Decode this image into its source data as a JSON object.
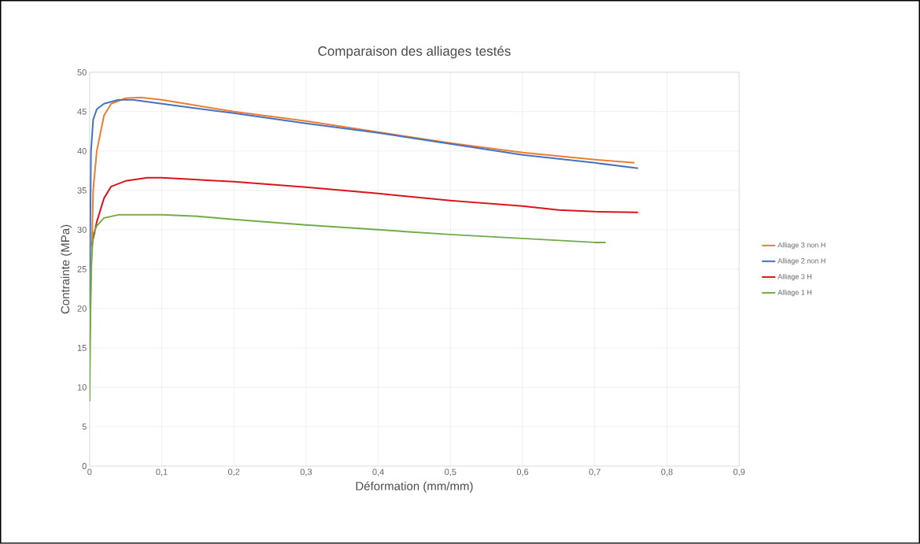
{
  "chart_data": {
    "type": "line",
    "title": "Comparaison des alliages testés",
    "xlabel": "Déformation (mm/mm)",
    "ylabel": "Contrainte (MPa)",
    "xlim": [
      0,
      0.9
    ],
    "ylim": [
      0,
      50
    ],
    "xticks": [
      {
        "value": 0,
        "label": "0"
      },
      {
        "value": 0.1,
        "label": "0,1"
      },
      {
        "value": 0.2,
        "label": "0,2"
      },
      {
        "value": 0.3,
        "label": "0,3"
      },
      {
        "value": 0.4,
        "label": "0,4"
      },
      {
        "value": 0.5,
        "label": "0,5"
      },
      {
        "value": 0.6,
        "label": "0,6"
      },
      {
        "value": 0.7,
        "label": "0,7"
      },
      {
        "value": 0.8,
        "label": "0,8"
      },
      {
        "value": 0.9,
        "label": "0,9"
      }
    ],
    "yticks": [
      0,
      5,
      10,
      15,
      20,
      25,
      30,
      35,
      40,
      45,
      50
    ],
    "grid": true,
    "legend": "right",
    "marker": "none",
    "line_style": "solid",
    "series": [
      {
        "name": "Alliage 3 non H",
        "color": "#ed7d31",
        "x": [
          0,
          0.005,
          0.01,
          0.02,
          0.03,
          0.05,
          0.07,
          0.1,
          0.2,
          0.3,
          0.4,
          0.5,
          0.6,
          0.7,
          0.755
        ],
        "values": [
          15,
          35,
          40,
          44.5,
          46,
          46.7,
          46.8,
          46.5,
          45,
          43.8,
          42.4,
          41,
          39.8,
          38.9,
          38.5
        ]
      },
      {
        "name": "Alliage 2 non H",
        "color": "#4472c4",
        "x": [
          0,
          0.002,
          0.005,
          0.01,
          0.02,
          0.04,
          0.06,
          0.1,
          0.2,
          0.3,
          0.4,
          0.5,
          0.6,
          0.7,
          0.76
        ],
        "values": [
          20,
          40,
          44,
          45.3,
          46,
          46.5,
          46.5,
          46,
          44.8,
          43.5,
          42.3,
          40.9,
          39.5,
          38.5,
          37.8
        ]
      },
      {
        "name": "Alliage 3 H",
        "color": "#d9151b",
        "x": [
          0.003,
          0.01,
          0.02,
          0.03,
          0.05,
          0.08,
          0.1,
          0.2,
          0.3,
          0.4,
          0.5,
          0.6,
          0.65,
          0.7,
          0.76
        ],
        "values": [
          28,
          31,
          34,
          35.5,
          36.2,
          36.6,
          36.6,
          36.1,
          35.4,
          34.6,
          33.7,
          33,
          32.5,
          32.3,
          32.2
        ]
      },
      {
        "name": "Alliage 1 H",
        "color": "#70ad47",
        "x": [
          0,
          0.002,
          0.005,
          0.01,
          0.02,
          0.04,
          0.1,
          0.15,
          0.2,
          0.3,
          0.4,
          0.5,
          0.6,
          0.7,
          0.715
        ],
        "values": [
          8.2,
          25,
          29.5,
          30.5,
          31.5,
          31.9,
          31.9,
          31.7,
          31.3,
          30.6,
          30,
          29.4,
          28.9,
          28.4,
          28.4
        ]
      }
    ]
  }
}
